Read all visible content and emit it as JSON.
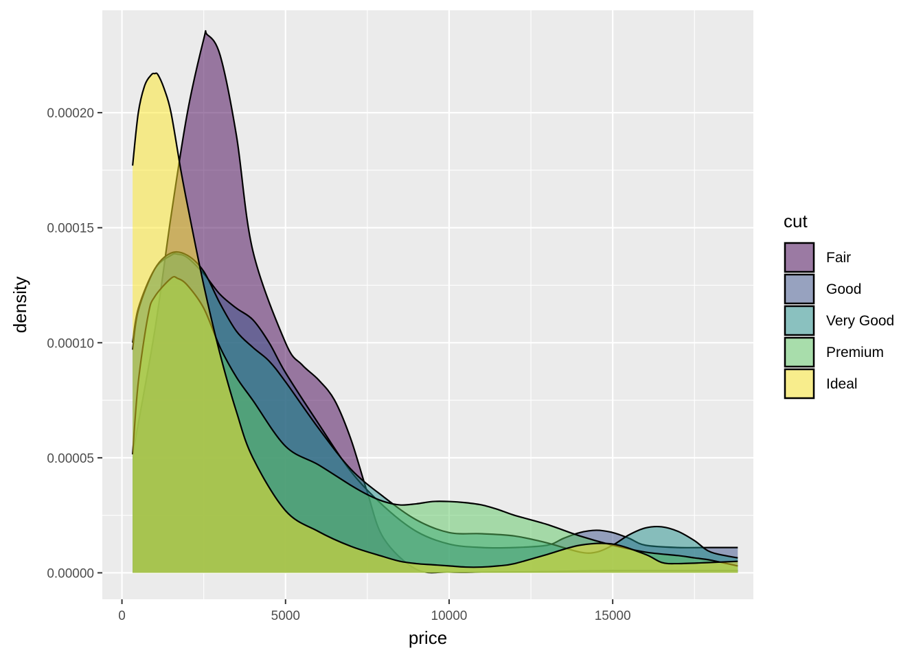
{
  "chart_data": {
    "type": "area",
    "subtype": "density",
    "xlabel": "price",
    "ylabel": "density",
    "xlim": [
      -600,
      19300
    ],
    "ylim": [
      -1.15e-05,
      0.0002445
    ],
    "x_ticks": [
      0,
      5000,
      10000,
      15000
    ],
    "x_tick_labels": [
      "0",
      "5000",
      "10000",
      "15000"
    ],
    "y_ticks": [
      0,
      5e-05,
      0.0001,
      0.00015,
      0.0002
    ],
    "y_tick_labels": [
      "0.00000",
      "0.00005",
      "0.00010",
      "0.00015",
      "0.00020"
    ],
    "grid": true,
    "legend": {
      "title": "cut",
      "position": "right"
    },
    "series": [
      {
        "name": "Fair",
        "color": "#440154",
        "x": [
          326,
          1000,
          1500,
          2000,
          2500,
          2600,
          3000,
          3500,
          4000,
          5000,
          5500,
          6000,
          6500,
          7000,
          7500,
          8000,
          9000,
          10000,
          11000,
          12000,
          13000,
          14000,
          15000,
          16000,
          17000,
          18000,
          18823
        ],
        "y": [
          5.15e-05,
          0.000105,
          0.000155,
          0.0002,
          0.000232,
          0.000234,
          0.000225,
          0.00019,
          0.00014,
          0.0001,
          9.05e-05,
          8.4e-05,
          7.5e-05,
          5.8e-05,
          3.5e-05,
          1.5e-05,
          1.5e-06,
          3e-07,
          3e-07,
          4e-07,
          5e-07,
          8e-07,
          1e-06,
          1e-06,
          1e-06,
          1e-06,
          1e-06
        ]
      },
      {
        "name": "Good",
        "color": "#3B528B",
        "x": [
          326,
          500,
          1000,
          1500,
          1700,
          2000,
          2500,
          3000,
          3500,
          4000,
          4500,
          5000,
          6000,
          7000,
          8000,
          9000,
          10000,
          11000,
          12000,
          13000,
          13500,
          14000,
          14500,
          15000,
          15500,
          16000,
          17000,
          18000,
          18823
        ],
        "y": [
          0.0001,
          0.000115,
          0.000132,
          0.000138,
          0.0001385,
          0.000137,
          0.00013,
          0.000121,
          0.000115,
          0.00011,
          0.0001,
          8.7e-05,
          6.5e-05,
          4.4e-05,
          2.9e-05,
          1.8e-05,
          1.25e-05,
          1.1e-05,
          1.1e-05,
          1.2e-05,
          1.5e-05,
          1.75e-05,
          1.85e-05,
          1.75e-05,
          1.5e-05,
          1.2e-05,
          1.1e-05,
          1.1e-05,
          1.1e-05
        ]
      },
      {
        "name": "Very Good",
        "color": "#21908C",
        "x": [
          326,
          500,
          1000,
          1500,
          2000,
          2500,
          3000,
          3500,
          4000,
          4500,
          5000,
          6000,
          7000,
          8000,
          9000,
          10000,
          11000,
          12000,
          13000,
          14000,
          14500,
          15000,
          15500,
          16000,
          16500,
          17000,
          17500,
          18000,
          18823
        ],
        "y": [
          9.7e-05,
          0.000114,
          0.000132,
          0.000139,
          0.000138,
          0.000131,
          0.000117,
          0.000105,
          9.8e-05,
          9.2e-05,
          8.3e-05,
          6.3e-05,
          4.5e-05,
          3.3e-05,
          2.3e-05,
          1.75e-05,
          1.7e-05,
          1.6e-05,
          1.3e-05,
          9e-06,
          9e-06,
          1.2e-05,
          1.65e-05,
          1.95e-05,
          2e-05,
          1.8e-05,
          1.4e-05,
          9e-06,
          6.5e-06
        ]
      },
      {
        "name": "Premium",
        "color": "#5DC863",
        "x": [
          326,
          500,
          800,
          1000,
          1500,
          1700,
          2000,
          2500,
          3000,
          3500,
          4000,
          5000,
          6000,
          7000,
          7500,
          8000,
          8500,
          9000,
          9500,
          10000,
          10500,
          11000,
          11500,
          12000,
          13000,
          14000,
          15000,
          16000,
          17000,
          17500,
          18000,
          18823
        ],
        "y": [
          5.15e-05,
          8.3e-05,
          0.000112,
          0.00012,
          0.000128,
          0.000128,
          0.000125,
          0.000115,
          9.8e-05,
          8.5e-05,
          7.5e-05,
          5.5e-05,
          4.7e-05,
          3.8e-05,
          3.4e-05,
          3.1e-05,
          2.95e-05,
          3e-05,
          3.1e-05,
          3.1e-05,
          3.05e-05,
          2.95e-05,
          2.75e-05,
          2.5e-05,
          2.1e-05,
          1.6e-05,
          1.2e-05,
          9e-06,
          7.5e-06,
          6.5e-06,
          5.5e-06,
          3e-06
        ]
      },
      {
        "name": "Ideal",
        "color": "#FDE725",
        "x": [
          326,
          500,
          700,
          900,
          1000,
          1100,
          1300,
          1500,
          1800,
          2000,
          2500,
          3000,
          3500,
          4000,
          5000,
          6000,
          7000,
          8000,
          8500,
          9000,
          9500,
          10000,
          10500,
          11000,
          11500,
          12000,
          13000,
          14000,
          15000,
          16000,
          16500,
          17000,
          18000,
          18823
        ],
        "y": [
          0.000177,
          0.0002,
          0.000212,
          0.0002165,
          0.000217,
          0.0002165,
          0.00021,
          0.0002,
          0.000175,
          0.00016,
          0.000125,
          9.5e-05,
          7e-05,
          5e-05,
          2.7e-05,
          1.8e-05,
          1.15e-05,
          7e-06,
          5e-06,
          4e-06,
          3.5e-06,
          3e-06,
          2.5e-06,
          2.5e-06,
          3e-06,
          4e-06,
          8e-06,
          1.2e-05,
          1.25e-05,
          8e-06,
          4.5e-06,
          4e-06,
          4.5e-06,
          5e-06
        ]
      }
    ]
  }
}
